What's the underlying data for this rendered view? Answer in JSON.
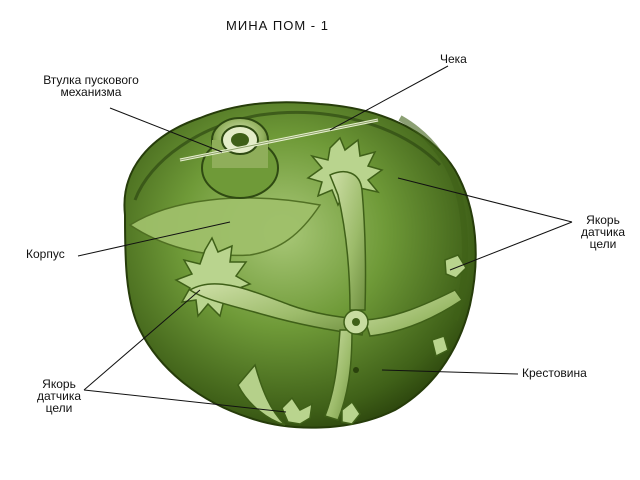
{
  "title": "МИНА  ПОМ - 1",
  "labels": {
    "sleeve": [
      "Втулка пускового",
      "механизма"
    ],
    "pin": "Чека",
    "body": "Корпус",
    "anchor_right": [
      "Якорь",
      "датчика",
      "цели"
    ],
    "anchor_left": [
      "Якорь",
      "датчика",
      "цели"
    ],
    "cross": "Крестовина"
  },
  "colors": {
    "mine_dark": "#2f4a12",
    "mine_mid": "#6f9a38",
    "mine_light": "#a9c878",
    "leader_line": "#111111"
  }
}
